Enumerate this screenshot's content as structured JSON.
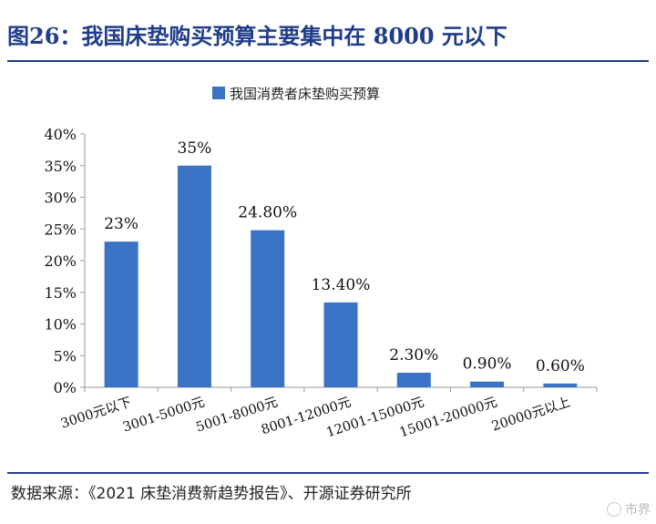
{
  "header": {
    "title": "图26：我国床垫购买预算主要集中在 8000 元以下"
  },
  "footer": {
    "source": "数据来源：《2021 床垫消费新趋势报告》、开源证券研究所",
    "watermark": "市界"
  },
  "colors": {
    "accent": "#1f3d8a",
    "bar": "#3a73c6"
  },
  "chart_data": {
    "type": "bar",
    "categories": [
      "3000元以下",
      "3001-5000元",
      "5001-8000元",
      "8001-12000元",
      "12001-15000元",
      "15001-20000元",
      "20000元以上"
    ],
    "series": [
      {
        "name": "我国消费者床垫购买预算",
        "values": [
          23,
          35,
          24.8,
          13.4,
          2.3,
          0.9,
          0.6
        ],
        "labels": [
          "23%",
          "35%",
          "24.80%",
          "13.40%",
          "2.30%",
          "0.90%",
          "0.60%"
        ]
      }
    ],
    "ylim": [
      0,
      40
    ],
    "yticks": [
      0,
      5,
      10,
      15,
      20,
      25,
      30,
      35,
      40
    ],
    "ytick_labels": [
      "0%",
      "5%",
      "10%",
      "15%",
      "20%",
      "25%",
      "30%",
      "35%",
      "40%"
    ],
    "legend": "top-center",
    "grid": false,
    "xlabel": "",
    "ylabel": ""
  }
}
